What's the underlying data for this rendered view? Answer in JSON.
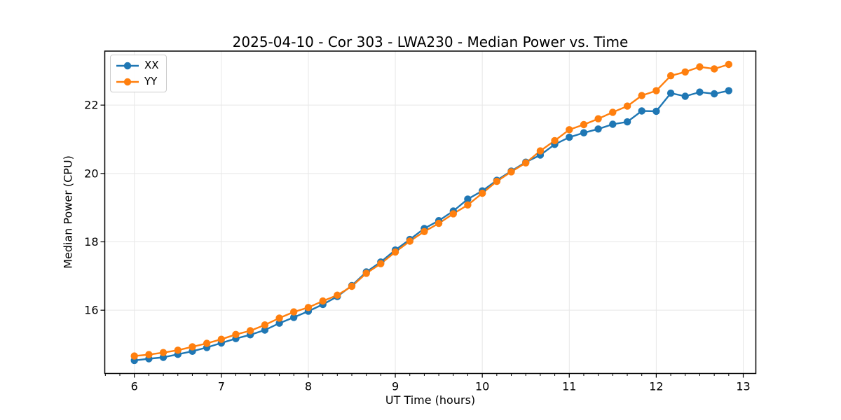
{
  "chart_data": {
    "type": "line",
    "title": "2025-04-10 - Cor 303 - LWA230 - Median Power vs. Time",
    "xlabel": "UT Time (hours)",
    "ylabel": "Median Power (CPU)",
    "xlim": [
      5.66,
      13.145
    ],
    "ylim": [
      14.15,
      23.58
    ],
    "x_ticks": [
      6,
      7,
      8,
      9,
      10,
      11,
      12,
      13
    ],
    "y_ticks": [
      16,
      18,
      20,
      22
    ],
    "x_minor_tick_step": 0.166667,
    "grid": true,
    "grid_color": "#e7e7e7",
    "legend_position": "upper left",
    "x": [
      6.0,
      6.167,
      6.333,
      6.5,
      6.667,
      6.833,
      7.0,
      7.167,
      7.333,
      7.5,
      7.667,
      7.833,
      8.0,
      8.167,
      8.333,
      8.5,
      8.667,
      8.833,
      9.0,
      9.167,
      9.333,
      9.5,
      9.667,
      9.833,
      10.0,
      10.167,
      10.333,
      10.5,
      10.667,
      10.833,
      11.0,
      11.167,
      11.333,
      11.5,
      11.667,
      11.833,
      12.0,
      12.167,
      12.333,
      12.5,
      12.667,
      12.833
    ],
    "series": [
      {
        "name": "XX",
        "color": "#1f77b4",
        "values": [
          14.53,
          14.58,
          14.62,
          14.71,
          14.8,
          14.91,
          15.04,
          15.17,
          15.28,
          15.42,
          15.62,
          15.79,
          15.97,
          16.17,
          16.4,
          16.72,
          17.12,
          17.41,
          17.76,
          18.07,
          18.39,
          18.62,
          18.9,
          19.25,
          19.49,
          19.8,
          20.07,
          20.33,
          20.54,
          20.85,
          21.06,
          21.19,
          21.3,
          21.44,
          21.51,
          21.83,
          21.82,
          22.35,
          22.26,
          22.38,
          22.33,
          22.42
        ]
      },
      {
        "name": "YY",
        "color": "#ff7f0e",
        "values": [
          14.66,
          14.7,
          14.76,
          14.83,
          14.93,
          15.03,
          15.15,
          15.29,
          15.4,
          15.57,
          15.77,
          15.95,
          16.08,
          16.27,
          16.44,
          16.7,
          17.08,
          17.36,
          17.7,
          18.02,
          18.3,
          18.54,
          18.82,
          19.08,
          19.42,
          19.77,
          20.05,
          20.31,
          20.66,
          20.96,
          21.28,
          21.43,
          21.6,
          21.79,
          21.97,
          22.28,
          22.42,
          22.86,
          22.97,
          23.12,
          23.06,
          23.19
        ]
      }
    ]
  }
}
